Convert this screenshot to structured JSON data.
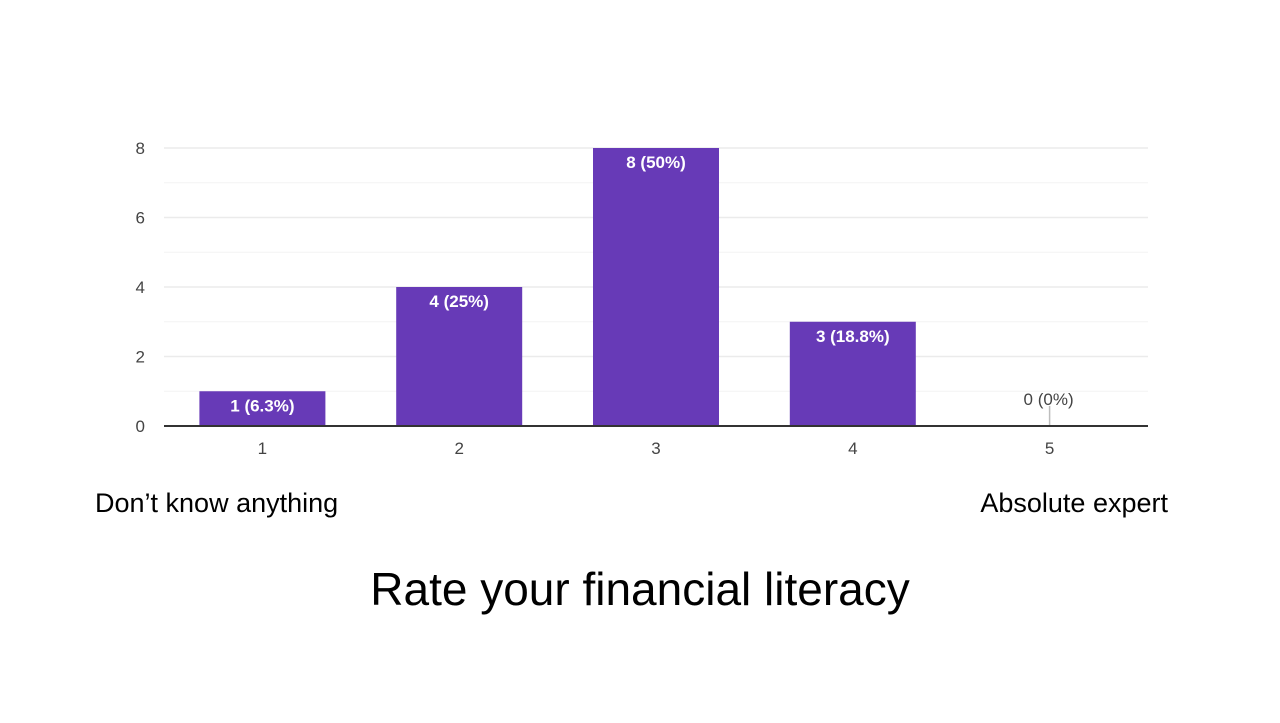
{
  "chart_data": {
    "type": "bar",
    "title": "Rate your financial literacy",
    "categories": [
      "1",
      "2",
      "3",
      "4",
      "5"
    ],
    "values": [
      1,
      4,
      8,
      3,
      0
    ],
    "data_labels": [
      "1 (6.3%)",
      "4 (25%)",
      "8 (50%)",
      "3 (18.8%)",
      "0 (0%)"
    ],
    "ylim": [
      0,
      8
    ],
    "yticks": [
      0,
      2,
      4,
      6,
      8
    ],
    "grid": true,
    "scale_labels": {
      "low": "Don’t know anything",
      "high": "Absolute expert"
    },
    "colors": {
      "bar": "#673ab7",
      "grid": "#ebebeb",
      "axis": "#333333",
      "tick_text": "#444444",
      "bar_label": "#ffffff"
    }
  }
}
